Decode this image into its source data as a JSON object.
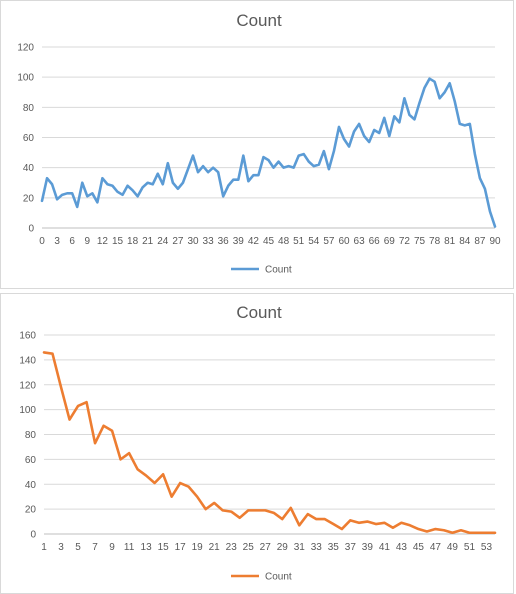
{
  "chart_data": [
    {
      "type": "line",
      "title": "Count",
      "xlabel": "",
      "ylabel": "",
      "ylim": [
        0,
        120
      ],
      "yticks": [
        0,
        20,
        40,
        60,
        80,
        100,
        120
      ],
      "x": [
        0,
        1,
        2,
        3,
        4,
        5,
        6,
        7,
        8,
        9,
        10,
        11,
        12,
        13,
        14,
        15,
        16,
        17,
        18,
        19,
        20,
        21,
        22,
        23,
        24,
        25,
        26,
        27,
        28,
        29,
        30,
        31,
        32,
        33,
        34,
        35,
        36,
        37,
        38,
        39,
        40,
        41,
        42,
        43,
        44,
        45,
        46,
        47,
        48,
        49,
        50,
        51,
        52,
        53,
        54,
        55,
        56,
        57,
        58,
        59,
        60,
        61,
        62,
        63,
        64,
        65,
        66,
        67,
        68,
        69,
        70,
        71,
        72,
        73,
        74,
        75,
        76,
        77,
        78,
        79,
        80,
        81,
        82,
        83,
        84,
        85,
        86,
        87,
        88,
        89,
        90
      ],
      "xtick_labels": [
        "0",
        "3",
        "6",
        "9",
        "12",
        "15",
        "18",
        "21",
        "24",
        "27",
        "30",
        "33",
        "36",
        "39",
        "42",
        "45",
        "48",
        "51",
        "54",
        "57",
        "60",
        "63",
        "66",
        "69",
        "72",
        "75",
        "78",
        "81",
        "84",
        "87",
        "90"
      ],
      "series": [
        {
          "name": "Count",
          "color": "#5b9bd5",
          "values": [
            18,
            33,
            29,
            19,
            22,
            23,
            23,
            14,
            30,
            21,
            23,
            17,
            33,
            29,
            28,
            24,
            22,
            28,
            25,
            21,
            27,
            30,
            29,
            36,
            29,
            43,
            30,
            26,
            30,
            39,
            48,
            37,
            41,
            37,
            40,
            37,
            21,
            28,
            32,
            32,
            48,
            31,
            35,
            35,
            47,
            45,
            40,
            44,
            40,
            41,
            40,
            48,
            49,
            44,
            41,
            42,
            51,
            39,
            51,
            67,
            59,
            54,
            64,
            69,
            61,
            57,
            65,
            63,
            73,
            61,
            74,
            70,
            86,
            75,
            72,
            83,
            93,
            99,
            97,
            86,
            90,
            96,
            84,
            69,
            68,
            69,
            49,
            33,
            26,
            11,
            1
          ]
        }
      ],
      "legend": "bottom",
      "grid": true
    },
    {
      "type": "line",
      "title": "Count",
      "xlabel": "",
      "ylabel": "",
      "ylim": [
        0,
        160
      ],
      "yticks": [
        0,
        20,
        40,
        60,
        80,
        100,
        120,
        140,
        160
      ],
      "x": [
        1,
        2,
        3,
        4,
        5,
        6,
        7,
        8,
        9,
        10,
        11,
        12,
        13,
        14,
        15,
        16,
        17,
        18,
        19,
        20,
        21,
        22,
        23,
        24,
        25,
        26,
        27,
        28,
        29,
        30,
        31,
        32,
        33,
        34,
        35,
        36,
        37,
        38,
        39,
        40,
        41,
        42,
        43,
        44,
        45,
        46,
        47,
        48,
        49,
        50,
        51,
        52,
        53,
        54
      ],
      "xtick_labels": [
        "1",
        "3",
        "5",
        "7",
        "9",
        "11",
        "13",
        "15",
        "17",
        "19",
        "21",
        "23",
        "25",
        "27",
        "29",
        "31",
        "33",
        "35",
        "37",
        "39",
        "41",
        "43",
        "45",
        "47",
        "49",
        "51",
        "53"
      ],
      "series": [
        {
          "name": "Count",
          "color": "#ed7d31",
          "values": [
            146,
            145,
            118,
            92,
            103,
            106,
            73,
            87,
            83,
            60,
            65,
            52,
            47,
            41,
            48,
            30,
            41,
            38,
            30,
            20,
            25,
            19,
            18,
            13,
            19,
            19,
            19,
            17,
            12,
            21,
            7,
            16,
            12,
            12,
            8,
            4,
            11,
            9,
            10,
            8,
            9,
            5,
            9,
            7,
            4,
            2,
            4,
            3,
            1,
            3,
            1,
            1,
            1,
            1
          ]
        }
      ],
      "legend": "bottom",
      "grid": true
    }
  ]
}
